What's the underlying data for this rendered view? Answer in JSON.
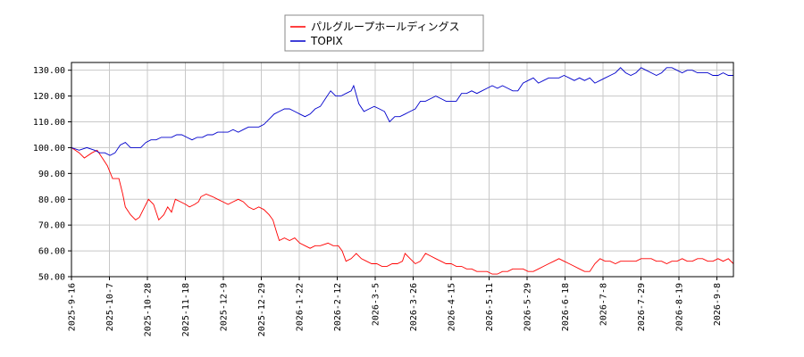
{
  "chart_data": {
    "type": "line",
    "title": "",
    "xlabel": "",
    "ylabel": "",
    "ylim": [
      50,
      133
    ],
    "grid": true,
    "legend_position": "top-center",
    "yticks": [
      50,
      60,
      70,
      80,
      90,
      100,
      110,
      120,
      130
    ],
    "ytick_labels": [
      "50.00",
      "60.00",
      "70.00",
      "80.00",
      "90.00",
      "100.00",
      "110.00",
      "120.00",
      "130.00"
    ],
    "xticks": [
      "2025-9-16",
      "2025-10-7",
      "2025-10-28",
      "2025-11-18",
      "2025-12-9",
      "2025-12-29",
      "2026-1-22",
      "2026-2-12",
      "2026-3-5",
      "2026-3-26",
      "2026-4-15",
      "2026-5-11",
      "2026-5-29",
      "2026-6-18",
      "2026-7-8",
      "2026-7-29",
      "2026-8-19",
      "2026-9-8"
    ],
    "series": [
      {
        "name": "パルグループホールディングス",
        "color": "#ff0000",
        "points": [
          [
            0,
            100
          ],
          [
            0.3,
            98
          ],
          [
            0.5,
            96
          ],
          [
            0.8,
            98
          ],
          [
            1.0,
            99
          ],
          [
            1.2,
            96
          ],
          [
            1.4,
            93
          ],
          [
            1.6,
            88
          ],
          [
            1.85,
            88
          ],
          [
            2.0,
            82
          ],
          [
            2.1,
            77
          ],
          [
            2.3,
            74
          ],
          [
            2.5,
            72
          ],
          [
            2.65,
            73
          ],
          [
            2.8,
            76
          ],
          [
            3.0,
            80
          ],
          [
            3.2,
            78
          ],
          [
            3.4,
            72
          ],
          [
            3.6,
            74
          ],
          [
            3.75,
            77
          ],
          [
            3.9,
            75
          ],
          [
            4.05,
            80
          ],
          [
            4.25,
            79
          ],
          [
            4.45,
            78
          ],
          [
            4.6,
            77
          ],
          [
            4.8,
            78
          ],
          [
            4.95,
            79
          ],
          [
            5.05,
            81
          ],
          [
            5.25,
            82
          ],
          [
            5.5,
            81
          ],
          [
            5.7,
            80
          ],
          [
            5.9,
            79
          ],
          [
            6.1,
            78
          ],
          [
            6.3,
            79
          ],
          [
            6.5,
            80
          ],
          [
            6.7,
            79
          ],
          [
            6.9,
            77
          ],
          [
            7.1,
            76
          ],
          [
            7.3,
            77
          ],
          [
            7.5,
            76
          ],
          [
            7.7,
            74
          ],
          [
            7.85,
            72
          ],
          [
            8.0,
            67
          ],
          [
            8.1,
            64
          ],
          [
            8.3,
            65
          ],
          [
            8.5,
            64
          ],
          [
            8.7,
            65
          ],
          [
            8.9,
            63
          ],
          [
            9.1,
            62
          ],
          [
            9.3,
            61
          ],
          [
            9.5,
            62
          ],
          [
            9.7,
            62
          ],
          [
            10.0,
            63
          ],
          [
            10.2,
            62
          ],
          [
            10.4,
            62
          ],
          [
            10.55,
            60
          ],
          [
            10.7,
            56
          ],
          [
            10.9,
            57
          ],
          [
            11.1,
            59
          ],
          [
            11.3,
            57
          ],
          [
            11.5,
            56
          ],
          [
            11.7,
            55
          ],
          [
            11.9,
            55
          ],
          [
            12.1,
            54
          ],
          [
            12.3,
            54
          ],
          [
            12.5,
            55
          ],
          [
            12.7,
            55
          ],
          [
            12.9,
            56
          ],
          [
            13.0,
            59
          ],
          [
            13.2,
            57
          ],
          [
            13.4,
            55
          ],
          [
            13.6,
            56
          ],
          [
            13.8,
            59
          ],
          [
            14.0,
            58
          ],
          [
            14.2,
            57
          ],
          [
            14.4,
            56
          ],
          [
            14.6,
            55
          ],
          [
            14.8,
            55
          ],
          [
            15.0,
            54
          ],
          [
            15.2,
            54
          ],
          [
            15.4,
            53
          ],
          [
            15.6,
            53
          ],
          [
            15.8,
            52
          ],
          [
            16.0,
            52
          ],
          [
            16.2,
            52
          ],
          [
            16.4,
            51
          ],
          [
            16.6,
            51
          ],
          [
            16.8,
            52
          ],
          [
            17.0,
            52
          ],
          [
            17.2,
            53
          ],
          [
            17.4,
            53
          ],
          [
            17.6,
            53
          ],
          [
            17.8,
            52
          ],
          [
            18.0,
            52
          ],
          [
            18.2,
            53
          ],
          [
            18.4,
            54
          ],
          [
            18.6,
            55
          ],
          [
            18.8,
            56
          ],
          [
            19.0,
            57
          ],
          [
            19.2,
            56
          ],
          [
            19.4,
            55
          ],
          [
            19.6,
            54
          ],
          [
            19.8,
            53
          ],
          [
            20.0,
            52
          ],
          [
            20.2,
            52
          ],
          [
            20.4,
            55
          ],
          [
            20.6,
            57
          ],
          [
            20.8,
            56
          ],
          [
            21.0,
            56
          ],
          [
            21.2,
            55
          ],
          [
            21.4,
            56
          ],
          [
            21.6,
            56
          ],
          [
            21.8,
            56
          ],
          [
            22.0,
            56
          ],
          [
            22.2,
            57
          ],
          [
            22.4,
            57
          ],
          [
            22.6,
            57
          ],
          [
            22.8,
            56
          ],
          [
            23.0,
            56
          ],
          [
            23.2,
            55
          ],
          [
            23.4,
            56
          ],
          [
            23.6,
            56
          ],
          [
            23.8,
            57
          ],
          [
            24.0,
            56
          ],
          [
            24.2,
            56
          ],
          [
            24.4,
            57
          ],
          [
            24.6,
            57
          ],
          [
            24.8,
            56
          ],
          [
            25.0,
            56
          ],
          [
            25.2,
            57
          ],
          [
            25.4,
            56
          ],
          [
            25.6,
            57
          ],
          [
            25.8,
            55
          ]
        ]
      },
      {
        "name": "TOPIX",
        "color": "#0000cc",
        "points": [
          [
            0,
            100
          ],
          [
            0.3,
            99
          ],
          [
            0.6,
            100
          ],
          [
            0.9,
            99
          ],
          [
            1.1,
            98
          ],
          [
            1.3,
            98
          ],
          [
            1.5,
            97
          ],
          [
            1.7,
            98
          ],
          [
            1.9,
            101
          ],
          [
            2.1,
            102
          ],
          [
            2.3,
            100
          ],
          [
            2.5,
            100
          ],
          [
            2.7,
            100
          ],
          [
            2.9,
            102
          ],
          [
            3.1,
            103
          ],
          [
            3.3,
            103
          ],
          [
            3.5,
            104
          ],
          [
            3.7,
            104
          ],
          [
            3.9,
            104
          ],
          [
            4.1,
            105
          ],
          [
            4.3,
            105
          ],
          [
            4.5,
            104
          ],
          [
            4.7,
            103
          ],
          [
            4.9,
            104
          ],
          [
            5.1,
            104
          ],
          [
            5.3,
            105
          ],
          [
            5.5,
            105
          ],
          [
            5.7,
            106
          ],
          [
            5.9,
            106
          ],
          [
            6.1,
            106
          ],
          [
            6.3,
            107
          ],
          [
            6.5,
            106
          ],
          [
            6.7,
            107
          ],
          [
            6.9,
            108
          ],
          [
            7.1,
            108
          ],
          [
            7.3,
            108
          ],
          [
            7.5,
            109
          ],
          [
            7.7,
            111
          ],
          [
            7.9,
            113
          ],
          [
            8.1,
            114
          ],
          [
            8.3,
            115
          ],
          [
            8.5,
            115
          ],
          [
            8.7,
            114
          ],
          [
            8.9,
            113
          ],
          [
            9.1,
            112
          ],
          [
            9.3,
            113
          ],
          [
            9.5,
            115
          ],
          [
            9.7,
            116
          ],
          [
            9.9,
            119
          ],
          [
            10.1,
            122
          ],
          [
            10.3,
            120
          ],
          [
            10.5,
            120
          ],
          [
            10.7,
            121
          ],
          [
            10.9,
            122
          ],
          [
            11.0,
            124
          ],
          [
            11.2,
            117
          ],
          [
            11.4,
            114
          ],
          [
            11.6,
            115
          ],
          [
            11.8,
            116
          ],
          [
            12.0,
            115
          ],
          [
            12.2,
            114
          ],
          [
            12.4,
            110
          ],
          [
            12.6,
            112
          ],
          [
            12.8,
            112
          ],
          [
            13.0,
            113
          ],
          [
            13.2,
            114
          ],
          [
            13.4,
            115
          ],
          [
            13.6,
            118
          ],
          [
            13.8,
            118
          ],
          [
            14.0,
            119
          ],
          [
            14.2,
            120
          ],
          [
            14.4,
            119
          ],
          [
            14.6,
            118
          ],
          [
            14.8,
            118
          ],
          [
            15.0,
            118
          ],
          [
            15.2,
            121
          ],
          [
            15.4,
            121
          ],
          [
            15.6,
            122
          ],
          [
            15.8,
            121
          ],
          [
            16.0,
            122
          ],
          [
            16.2,
            123
          ],
          [
            16.4,
            124
          ],
          [
            16.6,
            123
          ],
          [
            16.8,
            124
          ],
          [
            17.0,
            123
          ],
          [
            17.2,
            122
          ],
          [
            17.4,
            122
          ],
          [
            17.6,
            125
          ],
          [
            17.8,
            126
          ],
          [
            18.0,
            127
          ],
          [
            18.2,
            125
          ],
          [
            18.4,
            126
          ],
          [
            18.6,
            127
          ],
          [
            18.8,
            127
          ],
          [
            19.0,
            127
          ],
          [
            19.2,
            128
          ],
          [
            19.4,
            127
          ],
          [
            19.6,
            126
          ],
          [
            19.8,
            127
          ],
          [
            20.0,
            126
          ],
          [
            20.2,
            127
          ],
          [
            20.4,
            125
          ],
          [
            20.6,
            126
          ],
          [
            20.8,
            127
          ],
          [
            21.0,
            128
          ],
          [
            21.2,
            129
          ],
          [
            21.4,
            131
          ],
          [
            21.6,
            129
          ],
          [
            21.8,
            128
          ],
          [
            22.0,
            129
          ],
          [
            22.2,
            131
          ],
          [
            22.4,
            130
          ],
          [
            22.6,
            129
          ],
          [
            22.8,
            128
          ],
          [
            23.0,
            129
          ],
          [
            23.2,
            131
          ],
          [
            23.4,
            131
          ],
          [
            23.6,
            130
          ],
          [
            23.8,
            129
          ],
          [
            24.0,
            130
          ],
          [
            24.2,
            130
          ],
          [
            24.4,
            129
          ],
          [
            24.6,
            129
          ],
          [
            24.8,
            129
          ],
          [
            25.0,
            128
          ],
          [
            25.2,
            128
          ],
          [
            25.4,
            129
          ],
          [
            25.6,
            128
          ],
          [
            25.8,
            128
          ]
        ]
      }
    ]
  }
}
